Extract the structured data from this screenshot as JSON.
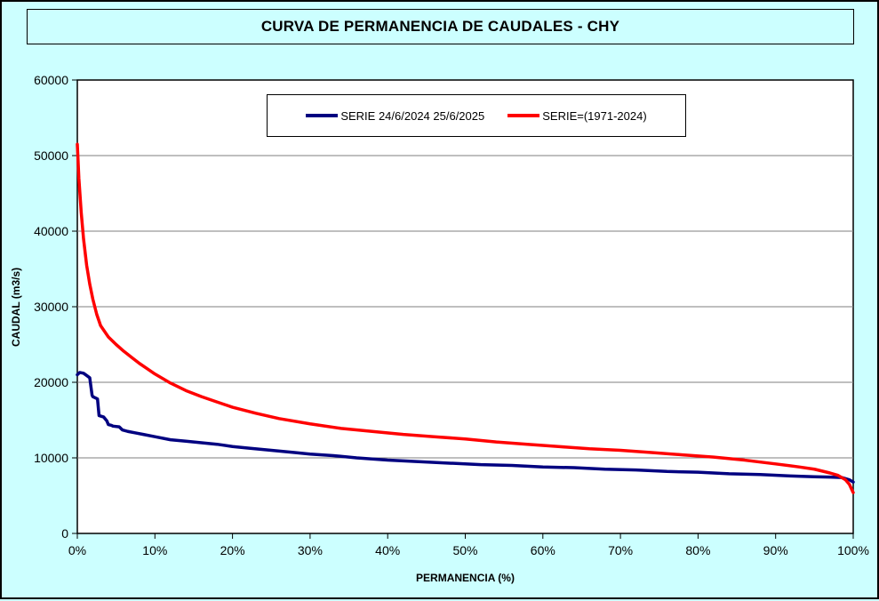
{
  "page": {
    "background_color": "#CCFFFF",
    "plot_background_color": "#FFFFFF",
    "gridline_color": "#7F7F7F"
  },
  "chart_data": {
    "type": "line",
    "title": "CURVA DE PERMANENCIA DE CAUDALES - CHY",
    "xlabel": "PERMANENCIA (%)",
    "ylabel": "CAUDAL (m3/s)",
    "xlim": [
      0,
      100
    ],
    "ylim": [
      0,
      60000
    ],
    "grid": "horizontal",
    "legend_position": "top-inside",
    "x_ticks": [
      "0%",
      "10%",
      "20%",
      "30%",
      "40%",
      "50%",
      "60%",
      "70%",
      "80%",
      "90%",
      "100%"
    ],
    "x_tick_values": [
      0,
      10,
      20,
      30,
      40,
      50,
      60,
      70,
      80,
      90,
      100
    ],
    "y_ticks": [
      "0",
      "10000",
      "20000",
      "30000",
      "40000",
      "50000",
      "60000"
    ],
    "y_tick_values": [
      0,
      10000,
      20000,
      30000,
      40000,
      50000,
      60000
    ],
    "series": [
      {
        "name": "SERIE 24/6/2024 25/6/2025",
        "color": "#000080",
        "x": [
          0,
          0.3,
          0.8,
          1.2,
          1.6,
          1.9,
          2.0,
          2.6,
          2.8,
          3.4,
          3.8,
          4.0,
          4.4,
          4.6,
          5.4,
          5.8,
          6.5,
          7.5,
          8.5,
          10,
          12,
          14,
          16,
          18,
          20,
          22,
          25,
          28,
          30,
          33,
          36,
          40,
          44,
          48,
          52,
          56,
          60,
          64,
          68,
          72,
          76,
          80,
          84,
          88,
          92,
          95,
          97,
          98.5,
          99.5,
          100
        ],
        "y": [
          21000,
          21300,
          21200,
          20900,
          20600,
          18300,
          18100,
          17800,
          15600,
          15400,
          14900,
          14400,
          14300,
          14200,
          14100,
          13700,
          13500,
          13300,
          13100,
          12800,
          12400,
          12200,
          12000,
          11800,
          11500,
          11300,
          11000,
          10700,
          10500,
          10300,
          10000,
          9700,
          9500,
          9300,
          9100,
          9000,
          8800,
          8700,
          8500,
          8400,
          8200,
          8100,
          7900,
          7800,
          7600,
          7500,
          7450,
          7400,
          7100,
          6800
        ]
      },
      {
        "name": "SERIE=(1971-2024)",
        "color": "#FF0000",
        "x": [
          0,
          0.2,
          0.5,
          0.8,
          1.2,
          1.6,
          2,
          2.5,
          3,
          4,
          5,
          6,
          7,
          8,
          9,
          10,
          12,
          14,
          16,
          18,
          20,
          23,
          26,
          30,
          34,
          38,
          42,
          46,
          50,
          54,
          58,
          62,
          66,
          70,
          74,
          78,
          82,
          86,
          90,
          93,
          95,
          97,
          98,
          99,
          99.5,
          100
        ],
        "y": [
          51500,
          47000,
          42500,
          39000,
          35500,
          33000,
          31000,
          29000,
          27500,
          26000,
          25000,
          24100,
          23300,
          22500,
          21800,
          21100,
          19900,
          18900,
          18100,
          17400,
          16700,
          15900,
          15200,
          14500,
          13900,
          13500,
          13100,
          12800,
          12500,
          12100,
          11800,
          11500,
          11200,
          11000,
          10700,
          10400,
          10100,
          9700,
          9200,
          8800,
          8500,
          8000,
          7700,
          7100,
          6500,
          5400
        ]
      }
    ]
  }
}
